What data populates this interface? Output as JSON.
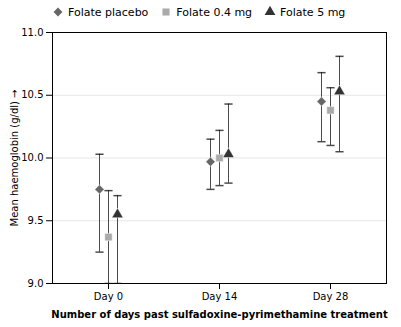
{
  "chart_data": {
    "type": "scatter",
    "xlabel": "Number of days past sulfadoxine-pyrimethamine treatment",
    "ylabel": "Mean haemoglobin (g/dl)",
    "categories": [
      "Day 0",
      "Day 14",
      "Day 28"
    ],
    "series": [
      {
        "name": "Folate placebo",
        "color": "#666666",
        "marker": "diamond",
        "values": [
          9.75,
          9.97,
          10.45
        ],
        "yerr_low": [
          0.5,
          0.22,
          0.32
        ],
        "yerr_high": [
          0.28,
          0.18,
          0.23
        ]
      },
      {
        "name": "Folate 0.4 mg",
        "color": "#aaaaaa",
        "marker": "square",
        "values": [
          9.37,
          10.0,
          10.38
        ],
        "yerr_low": [
          0.37,
          0.22,
          0.28
        ],
        "yerr_high": [
          0.37,
          0.22,
          0.18
        ]
      },
      {
        "name": "Folate 5 mg",
        "color": "#333333",
        "marker": "triangle",
        "values": [
          9.55,
          10.03,
          10.53
        ],
        "yerr_low": [
          0.55,
          0.23,
          0.48
        ],
        "yerr_high": [
          0.15,
          0.4,
          0.28
        ]
      }
    ],
    "ylim": [
      9.0,
      11.0
    ],
    "yticks": [
      {
        "value": 9.0,
        "label": "9.0"
      },
      9.5,
      {
        "value": 10.0,
        "label": "10.0"
      },
      10.5,
      {
        "value": 11.0,
        "label": "11.0"
      }
    ],
    "grid": true,
    "legend": "upper left"
  }
}
